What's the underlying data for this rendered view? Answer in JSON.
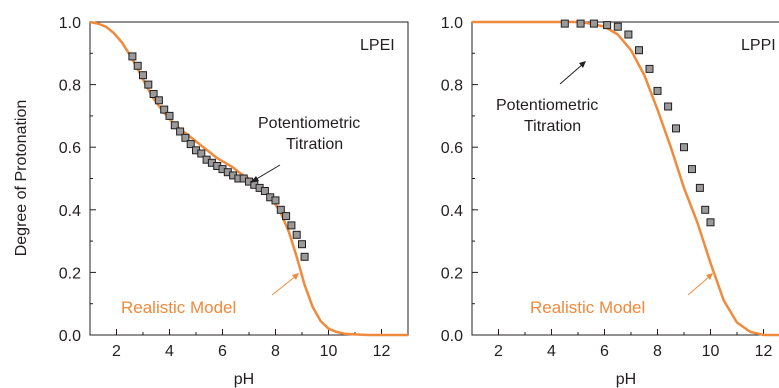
{
  "colors": {
    "model_line": "#f08a3c",
    "marker_fill": "#9a9a9a",
    "marker_stroke": "#231f20",
    "axis": "#231f20",
    "text": "#231f20"
  },
  "chart_data": [
    {
      "type": "line",
      "panel_label": "LPEI",
      "xlabel": "pH",
      "ylabel": "Degree of Protonation",
      "xlim": [
        1,
        13
      ],
      "ylim": [
        0,
        1
      ],
      "x_ticks": [
        2,
        4,
        6,
        8,
        10,
        12
      ],
      "y_ticks": [
        0.0,
        0.2,
        0.4,
        0.6,
        0.8,
        1.0
      ],
      "x_tick_labels": [
        "2",
        "4",
        "6",
        "8",
        "10",
        "12"
      ],
      "y_tick_labels": [
        "0.0",
        "0.2",
        "0.4",
        "0.6",
        "0.8",
        "1.0"
      ],
      "grid": false,
      "series": [
        {
          "name": "Potentiometric Titration",
          "kind": "scatter",
          "marker": "square",
          "x": [
            2.6,
            2.8,
            3.0,
            3.2,
            3.4,
            3.6,
            3.8,
            4.0,
            4.2,
            4.4,
            4.6,
            4.8,
            5.0,
            5.2,
            5.4,
            5.6,
            5.8,
            6.0,
            6.2,
            6.4,
            6.6,
            6.8,
            7.0,
            7.2,
            7.4,
            7.6,
            7.8,
            8.0,
            8.2,
            8.4,
            8.6,
            8.8,
            9.0,
            9.1
          ],
          "y": [
            0.89,
            0.86,
            0.83,
            0.8,
            0.77,
            0.75,
            0.72,
            0.7,
            0.67,
            0.65,
            0.63,
            0.61,
            0.59,
            0.58,
            0.56,
            0.55,
            0.54,
            0.53,
            0.52,
            0.51,
            0.5,
            0.5,
            0.49,
            0.48,
            0.47,
            0.46,
            0.44,
            0.43,
            0.4,
            0.38,
            0.35,
            0.32,
            0.29,
            0.25
          ]
        },
        {
          "name": "Realistic Model",
          "kind": "line",
          "x": [
            1.0,
            1.3,
            1.6,
            1.9,
            2.2,
            2.5,
            2.8,
            3.1,
            3.4,
            3.7,
            4.0,
            4.3,
            4.6,
            4.9,
            5.2,
            5.5,
            5.8,
            6.1,
            6.4,
            6.7,
            7.0,
            7.3,
            7.6,
            7.9,
            8.2,
            8.5,
            8.8,
            9.1,
            9.4,
            9.7,
            10.0,
            10.3,
            10.6,
            11.0,
            11.5,
            12.0,
            12.5,
            13.0
          ],
          "y": [
            1.0,
            0.995,
            0.985,
            0.965,
            0.935,
            0.895,
            0.85,
            0.8,
            0.755,
            0.72,
            0.69,
            0.665,
            0.645,
            0.625,
            0.605,
            0.585,
            0.565,
            0.55,
            0.535,
            0.515,
            0.5,
            0.48,
            0.46,
            0.43,
            0.39,
            0.33,
            0.25,
            0.16,
            0.09,
            0.045,
            0.02,
            0.01,
            0.004,
            0.002,
            0.0,
            0.0,
            0.0,
            0.0
          ]
        }
      ],
      "annotations": [
        "Potentiometric\nTitration",
        "Realistic Model"
      ]
    },
    {
      "type": "line",
      "panel_label": "LPPI",
      "xlabel": "pH",
      "ylabel": "",
      "xlim": [
        1,
        13
      ],
      "ylim": [
        0,
        1
      ],
      "x_ticks": [
        2,
        4,
        6,
        8,
        10,
        12
      ],
      "y_ticks": [
        0.0,
        0.2,
        0.4,
        0.6,
        0.8,
        1.0
      ],
      "x_tick_labels": [
        "2",
        "4",
        "6",
        "8",
        "10",
        "12"
      ],
      "y_tick_labels": [
        "0.0",
        "0.2",
        "0.4",
        "0.6",
        "0.8",
        "1.0"
      ],
      "grid": false,
      "series": [
        {
          "name": "Potentiometric Titration",
          "kind": "scatter",
          "marker": "square",
          "x": [
            4.5,
            5.1,
            5.6,
            6.1,
            6.5,
            6.9,
            7.3,
            7.7,
            8.0,
            8.4,
            8.7,
            9.0,
            9.3,
            9.6,
            9.8,
            10.0
          ],
          "y": [
            0.995,
            0.995,
            0.995,
            0.99,
            0.985,
            0.96,
            0.91,
            0.85,
            0.78,
            0.73,
            0.66,
            0.6,
            0.53,
            0.47,
            0.4,
            0.36
          ]
        },
        {
          "name": "Realistic Model",
          "kind": "line",
          "x": [
            1.0,
            2.0,
            3.0,
            4.0,
            5.0,
            5.5,
            6.0,
            6.5,
            7.0,
            7.5,
            8.0,
            8.5,
            9.0,
            9.5,
            10.0,
            10.5,
            11.0,
            11.5,
            12.0,
            12.5,
            13.0
          ],
          "y": [
            1.0,
            1.0,
            1.0,
            1.0,
            1.0,
            0.995,
            0.985,
            0.96,
            0.91,
            0.83,
            0.72,
            0.6,
            0.47,
            0.36,
            0.23,
            0.11,
            0.04,
            0.01,
            0.0,
            0.0,
            0.0
          ]
        }
      ],
      "annotations": [
        "Potentiometric\nTitration",
        "Realistic Model"
      ]
    }
  ]
}
